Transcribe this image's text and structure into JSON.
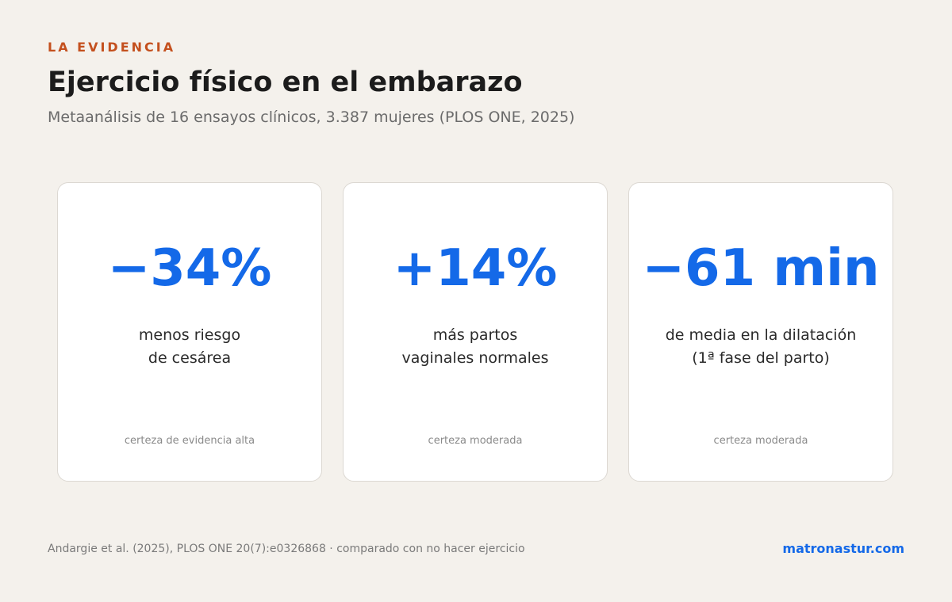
{
  "header": {
    "eyebrow": "LA EVIDENCIA",
    "title": "Ejercicio físico en el embarazo",
    "subtitle": "Metaanálisis de 16 ensayos clínicos, 3.387 mujeres (PLOS ONE, 2025)"
  },
  "cards": [
    {
      "value": "−34%",
      "description": [
        "menos riesgo",
        "de cesárea"
      ],
      "certainty": "certeza de evidencia alta"
    },
    {
      "value": "+14%",
      "description": [
        "más partos",
        "vaginales normales"
      ],
      "certainty": "certeza moderada"
    },
    {
      "value": "−61 min",
      "description": [
        "de media en la dilatación",
        "(1ª fase del parto)"
      ],
      "certainty": "certeza moderada"
    }
  ],
  "footer": {
    "source": "Andargie et al. (2025), PLOS ONE 20(7):e0326868 · comparado con no hacer ejercicio",
    "brand": "matronastur.com"
  },
  "colors": {
    "background": "#f4f1ec",
    "accent_orange": "#c4501e",
    "accent_blue": "#1469e8"
  }
}
